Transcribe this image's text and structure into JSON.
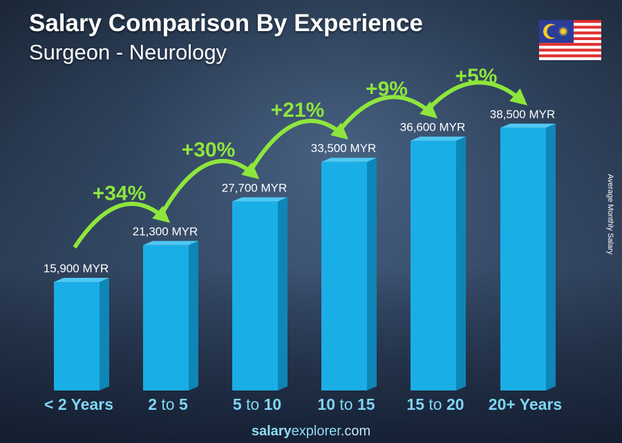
{
  "header": {
    "title": "Salary Comparison By Experience",
    "subtitle": "Surgeon - Neurology"
  },
  "footer": {
    "brand_bold": "salary",
    "brand_rest": "explorer",
    "brand_tld": ".com"
  },
  "flag": {
    "country": "Malaysia",
    "icon": "malaysia-flag-icon"
  },
  "colors": {
    "bar_front": "#1aaee6",
    "bar_side": "#0e86b8",
    "bar_top": "#4fc8f2",
    "growth": "#8ee63c",
    "category_label": "#7fd6f5"
  },
  "chart_data": {
    "type": "bar",
    "title": "Salary Comparison By Experience",
    "subtitle": "Surgeon - Neurology",
    "ylabel": "Average Monthly Salary",
    "xlabel": "",
    "unit": "MYR",
    "categories": [
      {
        "bold1": "< 2 Years",
        "mid": "",
        "bold2": ""
      },
      {
        "bold1": "2",
        "mid": " to ",
        "bold2": "5"
      },
      {
        "bold1": "5",
        "mid": " to ",
        "bold2": "10"
      },
      {
        "bold1": "10",
        "mid": " to ",
        "bold2": "15"
      },
      {
        "bold1": "15",
        "mid": " to ",
        "bold2": "20"
      },
      {
        "bold1": "20+ Years",
        "mid": "",
        "bold2": ""
      }
    ],
    "values": [
      15900,
      21300,
      27700,
      33500,
      36600,
      38500
    ],
    "value_labels": [
      "15,900 MYR",
      "21,300 MYR",
      "27,700 MYR",
      "33,500 MYR",
      "36,600 MYR",
      "38,500 MYR"
    ],
    "growth_labels": [
      "+34%",
      "+30%",
      "+21%",
      "+9%",
      "+5%"
    ],
    "grid": false
  }
}
